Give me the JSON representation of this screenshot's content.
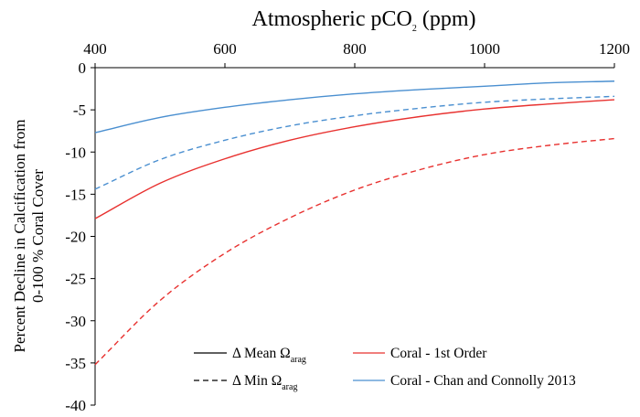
{
  "chart_data": {
    "type": "line",
    "title": "Atmospheric pCO",
    "title_subscript": "2",
    "title_suffix": " (ppm)",
    "ylabel_line1": "Percent Decline in Calcification from",
    "ylabel_line2": "0-100 % Coral Cover",
    "xlim": [
      400,
      1200
    ],
    "ylim": [
      -40,
      0
    ],
    "x_axis_position": "top",
    "x_ticks": [
      400,
      600,
      800,
      1000,
      1200
    ],
    "y_ticks": [
      0,
      -5,
      -10,
      -15,
      -20,
      -25,
      -30,
      -35,
      -40
    ],
    "x_tick_labels": [
      "400",
      "600",
      "800",
      "1000",
      "1200"
    ],
    "y_tick_labels": [
      "0",
      "-5",
      "-10",
      "-15",
      "-20",
      "-25",
      "-30",
      "-35",
      "-40"
    ],
    "grid": false,
    "legend_position": "bottom",
    "legend": [
      {
        "label_main": "Δ Mean Ω",
        "label_sub": "arag",
        "color": "#000000",
        "dash": "solid"
      },
      {
        "label_main": "Coral - 1st Order",
        "label_sub": "",
        "color": "#e8312f",
        "dash": "solid"
      },
      {
        "label_main": "Δ Min Ω",
        "label_sub": "arag",
        "color": "#000000",
        "dash": "dashed"
      },
      {
        "label_main": "Coral - Chan and Connolly 2013",
        "label_sub": "",
        "color": "#4a8fd0",
        "dash": "solid"
      }
    ],
    "x": [
      400,
      500,
      600,
      700,
      800,
      900,
      1000,
      1100,
      1200
    ],
    "series": [
      {
        "label": "Coral - 1st Order, Mean",
        "color": "#e8312f",
        "dash": "solid",
        "values": [
          -17.9,
          -13.7,
          -10.8,
          -8.6,
          -7.0,
          -5.8,
          -4.9,
          -4.3,
          -3.8
        ]
      },
      {
        "label": "Coral - 1st Order, Min",
        "color": "#e8312f",
        "dash": "dashed",
        "values": [
          -35.2,
          -27.6,
          -22.0,
          -17.8,
          -14.5,
          -12.1,
          -10.3,
          -9.2,
          -8.4
        ]
      },
      {
        "label": "Coral - Chan and Connolly 2013, Mean",
        "color": "#4a8fd0",
        "dash": "solid",
        "values": [
          -7.7,
          -5.9,
          -4.7,
          -3.8,
          -3.1,
          -2.6,
          -2.2,
          -1.8,
          -1.6
        ]
      },
      {
        "label": "Coral - Chan and Connolly 2013, Min",
        "color": "#4a8fd0",
        "dash": "dashed",
        "values": [
          -14.4,
          -10.9,
          -8.6,
          -6.9,
          -5.7,
          -4.8,
          -4.1,
          -3.7,
          -3.4
        ]
      }
    ]
  }
}
